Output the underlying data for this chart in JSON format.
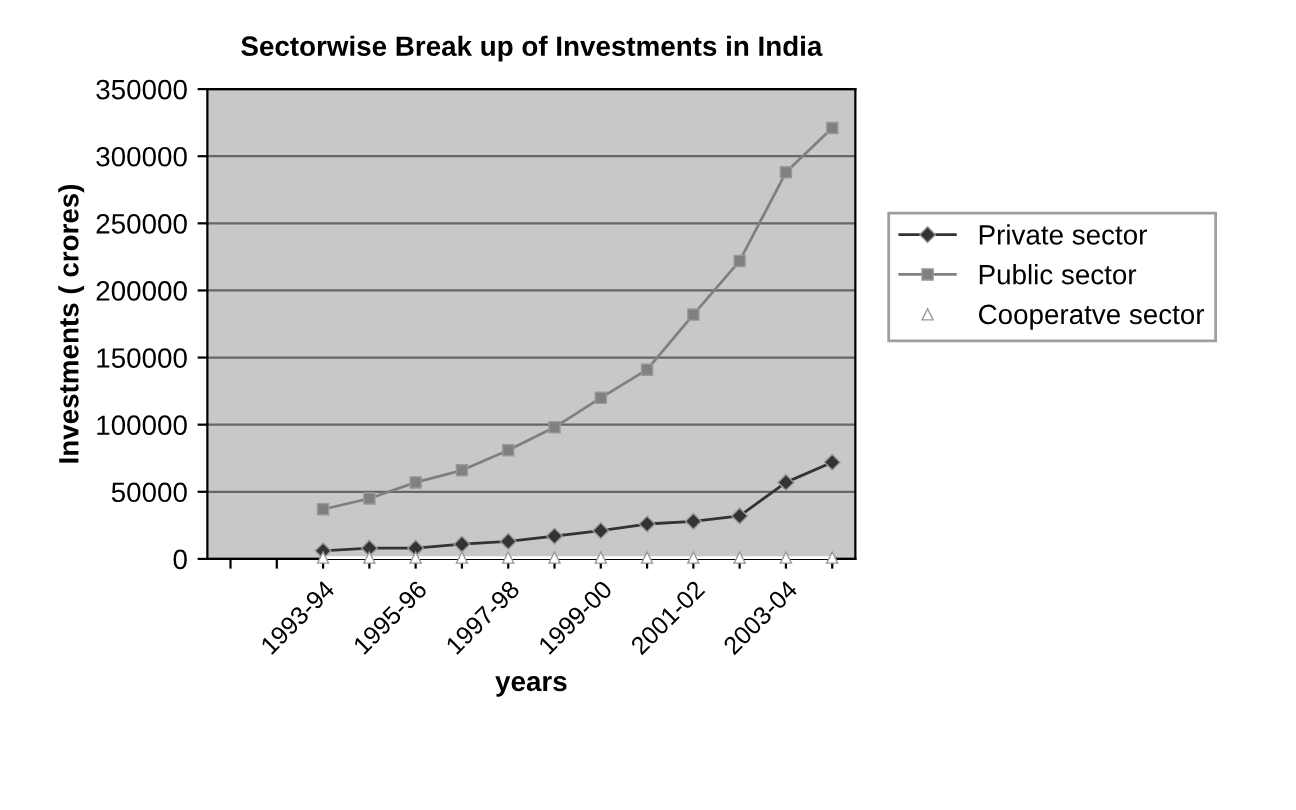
{
  "chart_data": {
    "type": "line",
    "title": "Sectorwise Break up of Investments in India",
    "xlabel": "years",
    "ylabel": "Investments ( crores)",
    "categories": [
      null,
      null,
      "1993-94",
      null,
      "1995-96",
      null,
      "1997-98",
      null,
      "1999-00",
      null,
      "2001-02",
      null,
      "2003-04",
      null
    ],
    "series": [
      {
        "name": "Private sector",
        "color": "#333333",
        "marker": "diamond",
        "values": [
          null,
          null,
          6000,
          8000,
          8000,
          11000,
          13000,
          17000,
          21000,
          26000,
          28000,
          32000,
          57000,
          72000
        ]
      },
      {
        "name": "Public sector",
        "color": "#808080",
        "marker": "square",
        "values": [
          null,
          null,
          37000,
          45000,
          57000,
          66000,
          81000,
          98000,
          120000,
          141000,
          182000,
          222000,
          288000,
          321000
        ]
      },
      {
        "name": "Cooperatve sector",
        "color": "#ffffff",
        "marker": "triangle",
        "values": [
          null,
          null,
          1000,
          1000,
          1000,
          1000,
          1000,
          1000,
          1000,
          1000,
          1000,
          1000,
          1000,
          1000
        ]
      }
    ],
    "ylim": [
      0,
      350000
    ],
    "yticks": [
      0,
      50000,
      100000,
      150000,
      200000,
      250000,
      300000,
      350000
    ],
    "grid": "y",
    "legend": "right"
  }
}
